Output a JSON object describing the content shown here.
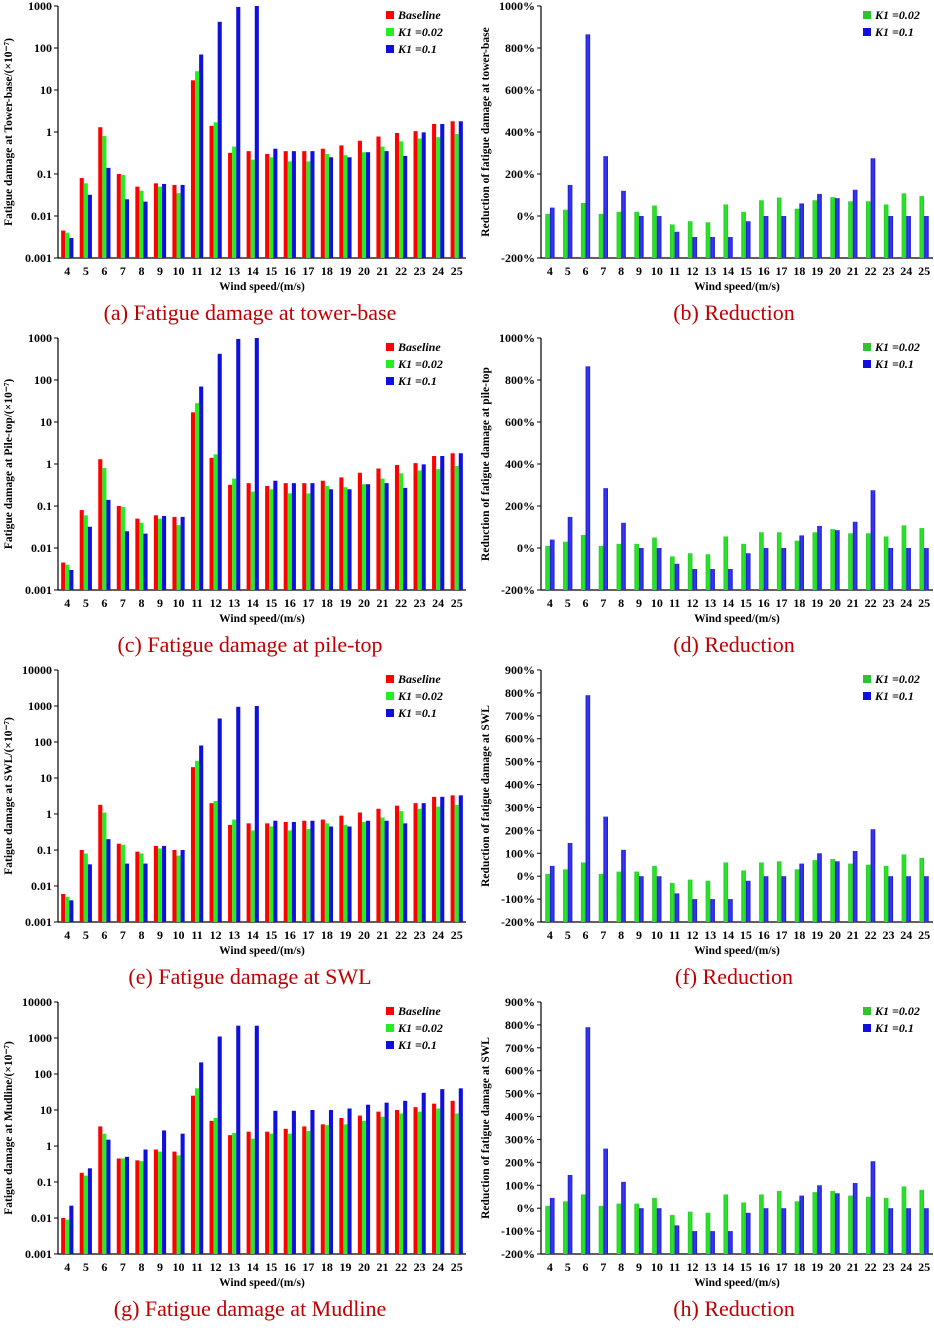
{
  "colors": {
    "baseline": "#ff0000",
    "k002": "#22ee22",
    "k01": "#1010dd",
    "k002_dark": "#2ec42e",
    "k01_dark": "#1b1bc8",
    "caption": "#c00000"
  },
  "chart_data": [
    {
      "id": "a",
      "type": "bar",
      "scale": "log",
      "title": "(a) Fatigue damage at tower-base",
      "xlabel": "Wind speed/(m/s)",
      "ylabel": "Fatigue damage at Tower-base/(×10⁻⁷)",
      "ylim": [
        0.001,
        1000
      ],
      "yticks": [
        "0.001",
        "0.01",
        "0.1",
        "1",
        "10",
        "100",
        "1000"
      ],
      "legend_position": "top-right",
      "categories": [
        "4",
        "5",
        "6",
        "7",
        "8",
        "9",
        "10",
        "11",
        "12",
        "13",
        "14",
        "15",
        "16",
        "17",
        "18",
        "19",
        "20",
        "21",
        "22",
        "23",
        "24",
        "25"
      ],
      "series": [
        {
          "name": "Baseline",
          "values": [
            0.0045,
            0.08,
            1.3,
            0.1,
            0.05,
            0.06,
            0.055,
            17,
            1.4,
            0.32,
            0.35,
            0.3,
            0.35,
            0.35,
            0.4,
            0.48,
            0.62,
            0.78,
            0.95,
            1.05,
            1.55,
            1.8
          ]
        },
        {
          "name": "K1 =0.02",
          "values": [
            0.004,
            0.06,
            0.8,
            0.095,
            0.04,
            0.05,
            0.035,
            28,
            1.7,
            0.45,
            0.22,
            0.25,
            0.2,
            0.2,
            0.3,
            0.28,
            0.33,
            0.45,
            0.6,
            0.7,
            0.75,
            0.9
          ]
        },
        {
          "name": "K1 =0.1",
          "values": [
            0.003,
            0.032,
            0.14,
            0.025,
            0.022,
            0.058,
            0.055,
            70,
            420,
            950,
            1000,
            0.4,
            0.35,
            0.35,
            0.25,
            0.25,
            0.33,
            0.35,
            0.27,
            0.98,
            1.55,
            1.8
          ]
        }
      ]
    },
    {
      "id": "b",
      "type": "bar",
      "title": "(b) Reduction",
      "xlabel": "Wind speed/(m/s)",
      "ylabel": "Reduction of fatigue damage at tower-base",
      "ylim": [
        -200,
        1000
      ],
      "yticks": [
        "-200%",
        "0%",
        "200%",
        "400%",
        "600%",
        "800%",
        "1000%"
      ],
      "legend_position": "top-right",
      "categories": [
        "4",
        "5",
        "6",
        "7",
        "8",
        "9",
        "10",
        "11",
        "12",
        "13",
        "14",
        "15",
        "16",
        "17",
        "18",
        "19",
        "20",
        "21",
        "22",
        "23",
        "24",
        "25"
      ],
      "series": [
        {
          "name": "K1 =0.02",
          "values": [
            10,
            30,
            62,
            10,
            20,
            20,
            50,
            -40,
            -25,
            -30,
            55,
            20,
            75,
            88,
            35,
            75,
            90,
            70,
            70,
            55,
            108,
            95
          ]
        },
        {
          "name": "K1 =0.1",
          "values": [
            40,
            148,
            865,
            285,
            120,
            0,
            0,
            -75,
            -100,
            -100,
            -100,
            -25,
            0,
            0,
            60,
            105,
            85,
            125,
            275,
            0,
            0,
            0
          ]
        }
      ]
    },
    {
      "id": "c",
      "type": "bar",
      "scale": "log",
      "title": "(c) Fatigue damage at pile-top",
      "xlabel": "Wind speed/(m/s)",
      "ylabel": "Fatigue damage at Pile-top/(×10⁻⁷)",
      "ylim": [
        0.001,
        1000
      ],
      "yticks": [
        "0.001",
        "0.01",
        "0.1",
        "1",
        "10",
        "100",
        "1000"
      ],
      "legend_position": "top-right",
      "categories": [
        "4",
        "5",
        "6",
        "7",
        "8",
        "9",
        "10",
        "11",
        "12",
        "13",
        "14",
        "15",
        "16",
        "17",
        "18",
        "19",
        "20",
        "21",
        "22",
        "23",
        "24",
        "25"
      ],
      "series": [
        {
          "name": "Baseline",
          "values": [
            0.0045,
            0.08,
            1.3,
            0.1,
            0.05,
            0.06,
            0.055,
            17,
            1.4,
            0.32,
            0.35,
            0.3,
            0.35,
            0.35,
            0.4,
            0.48,
            0.62,
            0.78,
            0.95,
            1.05,
            1.55,
            1.8
          ]
        },
        {
          "name": "K1 =0.02",
          "values": [
            0.004,
            0.06,
            0.8,
            0.095,
            0.04,
            0.05,
            0.035,
            28,
            1.7,
            0.45,
            0.22,
            0.25,
            0.2,
            0.2,
            0.3,
            0.28,
            0.33,
            0.45,
            0.6,
            0.7,
            0.75,
            0.9
          ]
        },
        {
          "name": "K1 =0.1",
          "values": [
            0.003,
            0.032,
            0.14,
            0.025,
            0.022,
            0.058,
            0.055,
            70,
            420,
            950,
            1000,
            0.4,
            0.35,
            0.35,
            0.25,
            0.25,
            0.33,
            0.35,
            0.27,
            0.98,
            1.55,
            1.8
          ]
        }
      ]
    },
    {
      "id": "d",
      "type": "bar",
      "title": "(d) Reduction",
      "xlabel": "Wind speed/(m/s)",
      "ylabel": "Reduction of fatigue damage at pile-top",
      "ylim": [
        -200,
        1000
      ],
      "yticks": [
        "-200%",
        "0%",
        "200%",
        "400%",
        "600%",
        "800%",
        "1000%"
      ],
      "legend_position": "top-right",
      "categories": [
        "4",
        "5",
        "6",
        "7",
        "8",
        "9",
        "10",
        "11",
        "12",
        "13",
        "14",
        "15",
        "16",
        "17",
        "18",
        "19",
        "20",
        "21",
        "22",
        "23",
        "24",
        "25"
      ],
      "series": [
        {
          "name": "K1 =0.02",
          "values": [
            10,
            30,
            62,
            10,
            20,
            20,
            50,
            -40,
            -25,
            -30,
            55,
            20,
            75,
            75,
            35,
            75,
            90,
            70,
            70,
            55,
            108,
            95
          ]
        },
        {
          "name": "K1 =0.1",
          "values": [
            40,
            148,
            865,
            285,
            120,
            0,
            0,
            -75,
            -100,
            -100,
            -100,
            -25,
            0,
            0,
            60,
            105,
            85,
            125,
            275,
            0,
            0,
            0
          ]
        }
      ]
    },
    {
      "id": "e",
      "type": "bar",
      "scale": "log",
      "title": "(e) Fatigue damage at SWL",
      "xlabel": "Wind speed/(m/s)",
      "ylabel": "Fatigue damage at SWL/(×10⁻⁷)",
      "ylim": [
        0.001,
        10000
      ],
      "yticks": [
        "0.001",
        "0.01",
        "0.1",
        "1",
        "10",
        "100",
        "1000",
        "10000"
      ],
      "legend_position": "top-right",
      "categories": [
        "4",
        "5",
        "6",
        "7",
        "8",
        "9",
        "10",
        "11",
        "12",
        "13",
        "14",
        "15",
        "16",
        "17",
        "18",
        "19",
        "20",
        "21",
        "22",
        "23",
        "24",
        "25"
      ],
      "series": [
        {
          "name": "Baseline",
          "values": [
            0.006,
            0.1,
            1.8,
            0.15,
            0.09,
            0.13,
            0.1,
            20,
            2,
            0.5,
            0.55,
            0.55,
            0.6,
            0.65,
            0.7,
            0.9,
            1.1,
            1.4,
            1.7,
            2,
            3,
            3.3
          ]
        },
        {
          "name": "K1 =0.02",
          "values": [
            0.005,
            0.08,
            1.1,
            0.14,
            0.08,
            0.11,
            0.07,
            30,
            2.3,
            0.7,
            0.35,
            0.45,
            0.35,
            0.38,
            0.55,
            0.5,
            0.6,
            0.8,
            1.2,
            1.4,
            1.6,
            1.8
          ]
        },
        {
          "name": "K1 =0.1",
          "values": [
            0.004,
            0.04,
            0.2,
            0.042,
            0.042,
            0.13,
            0.1,
            80,
            450,
            950,
            1000,
            0.65,
            0.6,
            0.65,
            0.45,
            0.45,
            0.65,
            0.65,
            0.55,
            2,
            3,
            3.3
          ]
        }
      ]
    },
    {
      "id": "f",
      "type": "bar",
      "title": "(f) Reduction",
      "xlabel": "Wind speed/(m/s)",
      "ylabel": "Reduction of fatigue damage at SWL",
      "ylim": [
        -200,
        900
      ],
      "yticks": [
        "-200%",
        "-100%",
        "0%",
        "100%",
        "200%",
        "300%",
        "400%",
        "500%",
        "600%",
        "700%",
        "800%",
        "900%"
      ],
      "legend_position": "top-right",
      "categories": [
        "4",
        "5",
        "6",
        "7",
        "8",
        "9",
        "10",
        "11",
        "12",
        "13",
        "14",
        "15",
        "16",
        "17",
        "18",
        "19",
        "20",
        "21",
        "22",
        "23",
        "24",
        "25"
      ],
      "series": [
        {
          "name": "K1 =0.02",
          "values": [
            10,
            30,
            60,
            10,
            20,
            20,
            45,
            -30,
            -15,
            -20,
            60,
            25,
            60,
            65,
            30,
            70,
            75,
            55,
            50,
            45,
            95,
            80
          ]
        },
        {
          "name": "K1 =0.1",
          "values": [
            45,
            145,
            790,
            260,
            115,
            0,
            0,
            -75,
            -100,
            -100,
            -100,
            -20,
            0,
            0,
            55,
            100,
            65,
            110,
            205,
            0,
            0,
            0
          ]
        }
      ]
    },
    {
      "id": "g",
      "type": "bar",
      "scale": "log",
      "title": "(g) Fatigue damage at Mudline",
      "xlabel": "Wind speed/(m/s)",
      "ylabel": "Fatigue damage at Mudline/(×10⁻⁷)",
      "ylim": [
        0.001,
        10000
      ],
      "yticks": [
        "0.001",
        "0.01",
        "0.1",
        "1",
        "10",
        "100",
        "1000",
        "10000"
      ],
      "legend_position": "top-right",
      "categories": [
        "4",
        "5",
        "6",
        "7",
        "8",
        "9",
        "10",
        "11",
        "12",
        "13",
        "14",
        "15",
        "16",
        "17",
        "18",
        "19",
        "20",
        "21",
        "22",
        "23",
        "24",
        "25"
      ],
      "series": [
        {
          "name": "Baseline",
          "values": [
            0.01,
            0.18,
            3.5,
            0.45,
            0.4,
            0.8,
            0.7,
            25,
            5,
            2,
            2.5,
            2.5,
            3,
            3.5,
            4,
            6,
            7,
            9,
            10,
            12,
            15,
            18
          ]
        },
        {
          "name": "K1 =0.02",
          "values": [
            0.009,
            0.15,
            2.2,
            0.45,
            0.38,
            0.7,
            0.55,
            40,
            6,
            2.3,
            1.6,
            2.2,
            2.2,
            2.6,
            3.8,
            4,
            5,
            6.5,
            8,
            9,
            11,
            8
          ]
        },
        {
          "name": "K1 =0.1",
          "values": [
            0.022,
            0.24,
            1.5,
            0.5,
            0.8,
            2.7,
            2.2,
            210,
            1100,
            2200,
            2200,
            9.5,
            9.5,
            10,
            10,
            11,
            14,
            16,
            18,
            30,
            38,
            40
          ]
        }
      ]
    },
    {
      "id": "h",
      "type": "bar",
      "title": "(h) Reduction",
      "xlabel": "Wind speed/(m/s)",
      "ylabel": "Reduction of fatigue damage at SWL",
      "ylim": [
        -200,
        900
      ],
      "yticks": [
        "-200%",
        "-100%",
        "0%",
        "100%",
        "200%",
        "300%",
        "400%",
        "500%",
        "600%",
        "700%",
        "800%",
        "900%"
      ],
      "legend_position": "top-right",
      "categories": [
        "4",
        "5",
        "6",
        "7",
        "8",
        "9",
        "10",
        "11",
        "12",
        "13",
        "14",
        "15",
        "16",
        "17",
        "18",
        "19",
        "20",
        "21",
        "22",
        "23",
        "24",
        "25"
      ],
      "series": [
        {
          "name": "K1 =0.02",
          "values": [
            10,
            30,
            60,
            10,
            20,
            20,
            45,
            -30,
            -15,
            -20,
            60,
            25,
            60,
            75,
            30,
            70,
            75,
            55,
            50,
            45,
            95,
            80
          ]
        },
        {
          "name": "K1 =0.1",
          "values": [
            45,
            145,
            790,
            260,
            115,
            0,
            0,
            -75,
            -100,
            -100,
            -100,
            -20,
            0,
            0,
            55,
            100,
            65,
            110,
            205,
            0,
            0,
            0
          ]
        }
      ]
    }
  ]
}
